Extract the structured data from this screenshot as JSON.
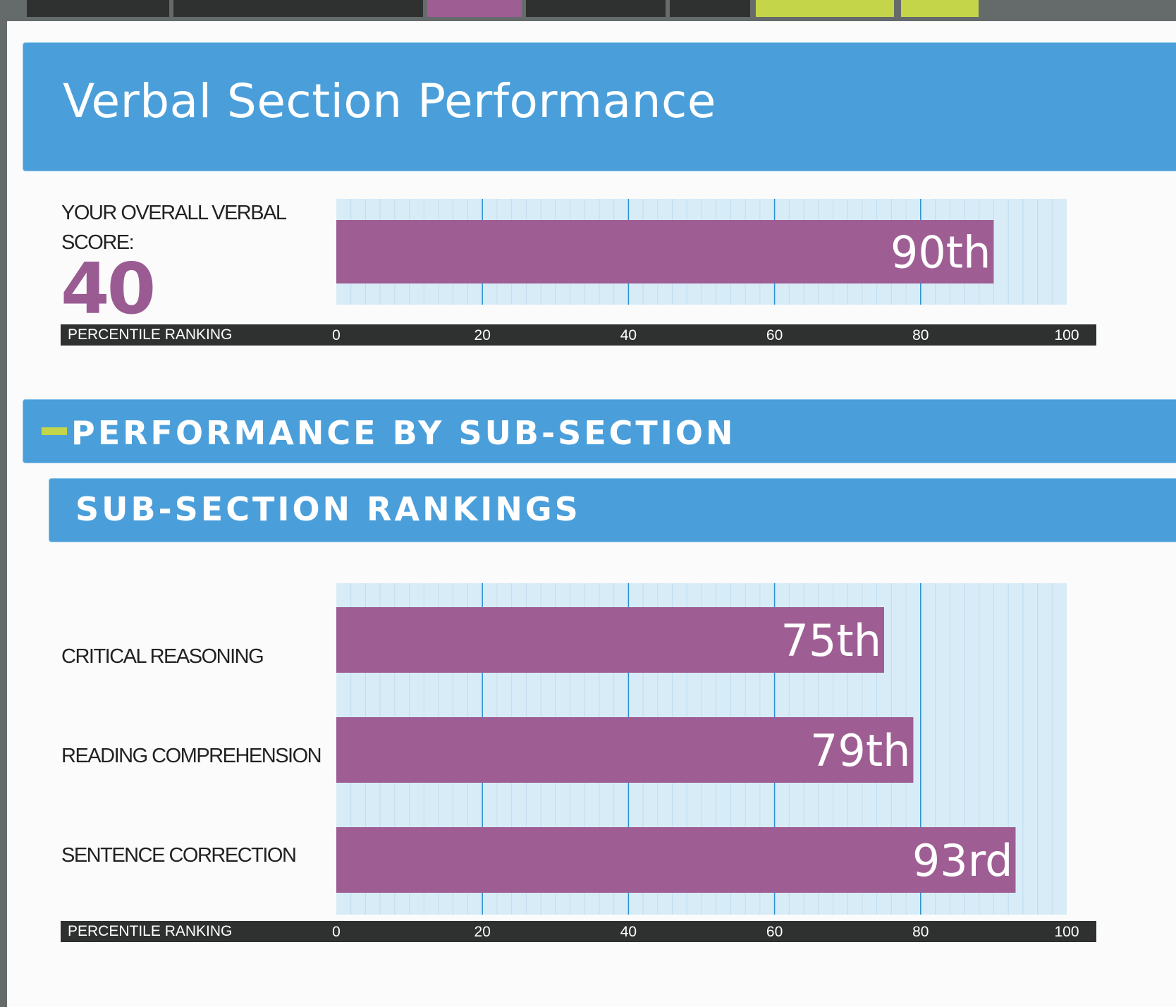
{
  "colors": {
    "banner_blue": "#4a9fda",
    "bar_purple": "#9e5e93",
    "accent_green": "#c4d54a",
    "dark_strip": "#2f3030",
    "grid_bg": "#d8ecf8"
  },
  "header": {
    "title": "Verbal Section Performance"
  },
  "overall": {
    "label_line1": "YOUR OVERALL VERBAL",
    "label_line2": "SCORE:",
    "score": "40"
  },
  "sub_section": {
    "band_title": "PERFORMANCE BY SUB-SECTION",
    "rankings_title": "SUB-SECTION RANKINGS",
    "labels": [
      "CRITICAL REASONING",
      "READING COMPREHENSION",
      "SENTENCE CORRECTION"
    ]
  },
  "axis": {
    "title": "PERCENTILE RANKING",
    "ticks": [
      "0",
      "20",
      "40",
      "60",
      "80",
      "100"
    ]
  },
  "chart_data": [
    {
      "type": "bar",
      "orientation": "horizontal",
      "categories": [
        "YOUR OVERALL VERBAL SCORE"
      ],
      "values": [
        90
      ],
      "data_labels": [
        "90th"
      ],
      "xlabel": "PERCENTILE RANKING",
      "xlim": [
        0,
        100
      ],
      "grid": true
    },
    {
      "type": "bar",
      "orientation": "horizontal",
      "categories": [
        "CRITICAL REASONING",
        "READING COMPREHENSION",
        "SENTENCE CORRECTION"
      ],
      "values": [
        75,
        79,
        93
      ],
      "data_labels": [
        "75th",
        "79th",
        "93rd"
      ],
      "xlabel": "PERCENTILE RANKING",
      "xlim": [
        0,
        100
      ],
      "grid": true
    }
  ]
}
